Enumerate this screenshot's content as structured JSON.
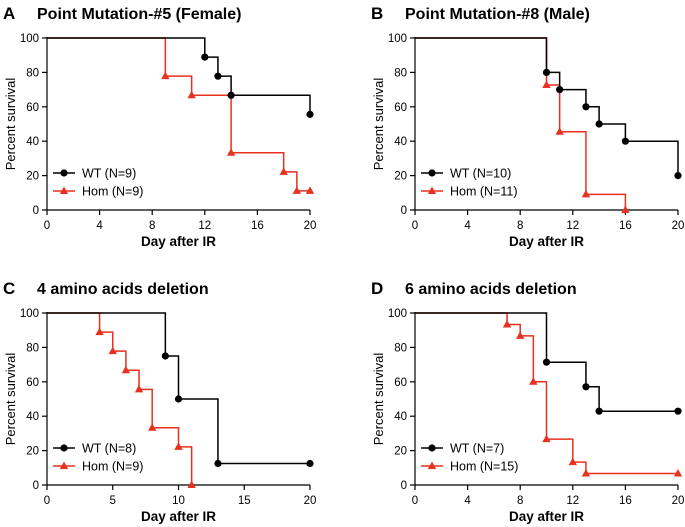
{
  "chart_data": [
    {
      "type": "line",
      "panel_letter": "A",
      "title": "Point Mutation-#5 (Female)",
      "xlabel": "Day after IR",
      "ylabel": "Percent survival",
      "xlim": [
        0,
        20
      ],
      "ylim": [
        0,
        100
      ],
      "x_ticks": [
        0,
        4,
        8,
        12,
        16,
        20
      ],
      "y_ticks": [
        0,
        20,
        40,
        60,
        80,
        100
      ],
      "legend_position": "bottom-left",
      "series": [
        {
          "name": "WT (N=9)",
          "color": "#000000",
          "marker": "circle",
          "steps": [
            [
              0,
              100
            ],
            [
              12,
              88.9
            ],
            [
              13,
              77.8
            ],
            [
              14,
              66.7
            ],
            [
              20,
              55.6
            ]
          ],
          "events": [
            [
              12,
              88.9
            ],
            [
              13,
              77.8
            ],
            [
              14,
              66.7
            ],
            [
              20,
              55.6
            ]
          ]
        },
        {
          "name": "Hom (N=9)",
          "color": "#e8311f",
          "marker": "triangle",
          "steps": [
            [
              0,
              100
            ],
            [
              9,
              77.8
            ],
            [
              11,
              66.7
            ],
            [
              14,
              33.3
            ],
            [
              18,
              22.2
            ],
            [
              19,
              11.1
            ]
          ],
          "end_x": 20,
          "events": [
            [
              9,
              77.8
            ],
            [
              11,
              66.7
            ],
            [
              14,
              33.3
            ],
            [
              18,
              22.2
            ],
            [
              19,
              11.1
            ],
            [
              20,
              11.1
            ]
          ]
        }
      ]
    },
    {
      "type": "line",
      "panel_letter": "B",
      "title": "Point Mutation-#8 (Male)",
      "xlabel": "Day after IR",
      "ylabel": "Percent survival",
      "xlim": [
        0,
        20
      ],
      "ylim": [
        0,
        100
      ],
      "x_ticks": [
        0,
        4,
        8,
        12,
        16,
        20
      ],
      "y_ticks": [
        0,
        20,
        40,
        60,
        80,
        100
      ],
      "legend_position": "bottom-left",
      "series": [
        {
          "name": "WT (N=10)",
          "color": "#000000",
          "marker": "circle",
          "steps": [
            [
              0,
              100
            ],
            [
              10,
              80
            ],
            [
              11,
              70
            ],
            [
              13,
              60
            ],
            [
              14,
              50
            ],
            [
              16,
              40
            ],
            [
              20,
              20
            ]
          ],
          "events": [
            [
              10,
              80
            ],
            [
              11,
              70
            ],
            [
              13,
              60
            ],
            [
              14,
              50
            ],
            [
              16,
              40
            ],
            [
              20,
              20
            ]
          ]
        },
        {
          "name": "Hom (N=11)",
          "color": "#e8311f",
          "marker": "triangle",
          "steps": [
            [
              0,
              100
            ],
            [
              10,
              72.7
            ],
            [
              11,
              45.5
            ],
            [
              13,
              9.1
            ],
            [
              16,
              0
            ]
          ],
          "events": [
            [
              10,
              72.7
            ],
            [
              11,
              45.5
            ],
            [
              13,
              9.1
            ],
            [
              16,
              0
            ]
          ]
        }
      ]
    },
    {
      "type": "line",
      "panel_letter": "C",
      "title": "4 amino acids deletion",
      "xlabel": "Day after IR",
      "ylabel": "Percent survival",
      "xlim": [
        0,
        20
      ],
      "ylim": [
        0,
        100
      ],
      "x_ticks": [
        0,
        5,
        10,
        15,
        20
      ],
      "y_ticks": [
        0,
        20,
        40,
        60,
        80,
        100
      ],
      "legend_position": "bottom-left",
      "series": [
        {
          "name": "WT (N=8)",
          "color": "#000000",
          "marker": "circle",
          "steps": [
            [
              0,
              100
            ],
            [
              9,
              75
            ],
            [
              10,
              50
            ],
            [
              13,
              12.5
            ],
            [
              20,
              12.5
            ]
          ],
          "events": [
            [
              9,
              75
            ],
            [
              10,
              50
            ],
            [
              13,
              12.5
            ],
            [
              20,
              12.5
            ]
          ]
        },
        {
          "name": "Hom (N=9)",
          "color": "#e8311f",
          "marker": "triangle",
          "steps": [
            [
              0,
              100
            ],
            [
              4,
              88.9
            ],
            [
              5,
              77.8
            ],
            [
              6,
              66.7
            ],
            [
              7,
              55.6
            ],
            [
              8,
              33.3
            ],
            [
              10,
              22.2
            ],
            [
              11,
              0
            ]
          ],
          "events": [
            [
              4,
              88.9
            ],
            [
              5,
              77.8
            ],
            [
              6,
              66.7
            ],
            [
              7,
              55.6
            ],
            [
              8,
              33.3
            ],
            [
              10,
              22.2
            ],
            [
              11,
              0
            ]
          ]
        }
      ]
    },
    {
      "type": "line",
      "panel_letter": "D",
      "title": "6 amino acids deletion",
      "xlabel": "Day after IR",
      "ylabel": "Percent survival",
      "xlim": [
        0,
        20
      ],
      "ylim": [
        0,
        100
      ],
      "x_ticks": [
        0,
        4,
        8,
        12,
        16,
        20
      ],
      "y_ticks": [
        0,
        20,
        40,
        60,
        80,
        100
      ],
      "legend_position": "bottom-left",
      "series": [
        {
          "name": "WT (N=7)",
          "color": "#000000",
          "marker": "circle",
          "steps": [
            [
              0,
              100
            ],
            [
              10,
              71.4
            ],
            [
              13,
              57.1
            ],
            [
              14,
              42.9
            ],
            [
              20,
              42.9
            ]
          ],
          "events": [
            [
              10,
              71.4
            ],
            [
              13,
              57.1
            ],
            [
              14,
              42.9
            ],
            [
              20,
              42.9
            ]
          ]
        },
        {
          "name": "Hom (N=15)",
          "color": "#e8311f",
          "marker": "triangle",
          "steps": [
            [
              0,
              100
            ],
            [
              7,
              93.3
            ],
            [
              8,
              86.7
            ],
            [
              9,
              60
            ],
            [
              10,
              26.7
            ],
            [
              12,
              13.3
            ],
            [
              13,
              6.7
            ]
          ],
          "end_x": 20,
          "events": [
            [
              7,
              93.3
            ],
            [
              8,
              86.7
            ],
            [
              9,
              60
            ],
            [
              10,
              26.7
            ],
            [
              12,
              13.3
            ],
            [
              13,
              6.7
            ],
            [
              20,
              6.7
            ]
          ]
        }
      ]
    }
  ]
}
